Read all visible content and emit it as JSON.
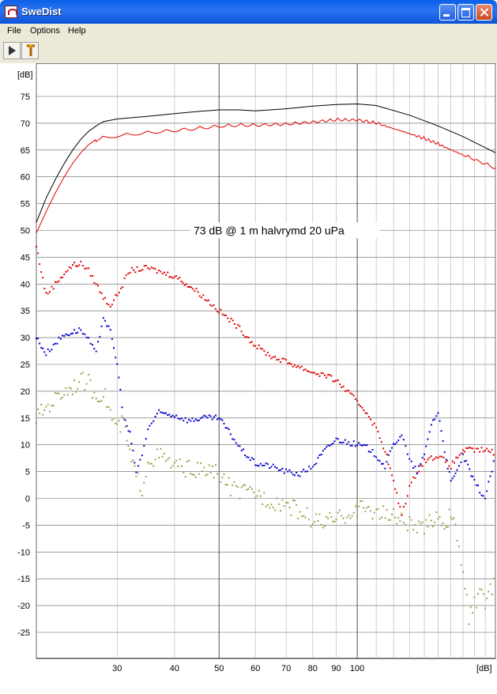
{
  "window": {
    "title": "SweDist",
    "controls": [
      "minimize",
      "maximize",
      "close"
    ]
  },
  "menu": {
    "items": [
      "File",
      "Options",
      "Help"
    ]
  },
  "toolbar": {
    "buttons": [
      {
        "name": "run",
        "icon": "play-icon"
      },
      {
        "name": "tool",
        "icon": "tuning-fork-icon"
      }
    ]
  },
  "colors": {
    "grid_major": "#606060",
    "grid_minor": "#b0b0b0",
    "fundamental": "#000000",
    "fundamental_corrected": "#e00000",
    "harmonic_2": "#e00000",
    "harmonic_3": "#0000d0",
    "harmonic_4": "#a0a050"
  },
  "chart_data": {
    "type": "line",
    "annotation": "73 dB @ 1 m halvrymd 20 uPa",
    "ylabel": "[dB]",
    "xlabel": "[dB]",
    "xscale": "log",
    "xlim": [
      20,
      200
    ],
    "ylim": [
      -30,
      78
    ],
    "x_ticks": [
      30,
      40,
      50,
      60,
      70,
      80,
      90,
      100
    ],
    "y_ticks": [
      75,
      70,
      65,
      60,
      55,
      50,
      45,
      40,
      35,
      30,
      25,
      20,
      15,
      10,
      5,
      0,
      -5,
      -10,
      -15,
      -20,
      -25
    ],
    "grid": true,
    "series": [
      {
        "style": "line",
        "color": "#000000",
        "x": [
          20,
          21,
          22,
          23,
          24,
          25,
          26,
          27,
          28,
          30,
          35,
          40,
          45,
          50,
          55,
          60,
          70,
          80,
          90,
          100,
          110,
          130,
          150,
          170,
          200
        ],
        "y": [
          51.5,
          56,
          59.5,
          62.5,
          65,
          67,
          68.5,
          69.5,
          70.3,
          70.8,
          71.3,
          71.8,
          72.2,
          72.5,
          72.5,
          72.3,
          72.7,
          73.2,
          73.5,
          73.6,
          73.3,
          71.5,
          69.5,
          67.5,
          64.5
        ]
      },
      {
        "style": "ripple",
        "color": "#e00000",
        "x": [
          20,
          21,
          22,
          23,
          24,
          25,
          26,
          27,
          28,
          30,
          35,
          40,
          45,
          50,
          55,
          60,
          70,
          80,
          90,
          100,
          110,
          130,
          150,
          170,
          200
        ],
        "y": [
          49.5,
          53.5,
          57,
          60,
          62.5,
          64.5,
          66,
          67,
          67.6,
          68,
          68.6,
          69,
          69.4,
          69.8,
          70,
          70,
          70.2,
          70.6,
          71,
          71,
          70.4,
          68.5,
          66.5,
          64.5,
          62
        ]
      },
      {
        "style": "dots",
        "color": "#e00000",
        "x": [
          20,
          21,
          22,
          23,
          24,
          25,
          26,
          27,
          28,
          29,
          30,
          32,
          35,
          38,
          40,
          45,
          50,
          55,
          60,
          65,
          70,
          75,
          80,
          85,
          90,
          95,
          100,
          105,
          110,
          115,
          120,
          125,
          130,
          135,
          140,
          150,
          160,
          170,
          180,
          190,
          200
        ],
        "y": [
          47,
          38,
          40,
          42,
          43.5,
          43.8,
          42.5,
          40,
          37.5,
          36,
          38,
          42.5,
          43,
          42,
          41.5,
          38.5,
          35,
          32,
          28.5,
          26.5,
          25.5,
          24.5,
          23.5,
          23,
          22,
          20,
          18,
          16,
          13,
          9,
          3,
          -3,
          2,
          5,
          7,
          8,
          6,
          9,
          9,
          9,
          8.5
        ]
      },
      {
        "style": "dots",
        "color": "#0000d0",
        "x": [
          20,
          21,
          22,
          23,
          24,
          25,
          26,
          27,
          28,
          29,
          30,
          31,
          32,
          33,
          34,
          35,
          37,
          40,
          43,
          46,
          50,
          53,
          56,
          60,
          65,
          70,
          75,
          80,
          85,
          90,
          95,
          100,
          105,
          110,
          115,
          120,
          125,
          130,
          135,
          140,
          145,
          150,
          155,
          160,
          165,
          170,
          180,
          190,
          200
        ],
        "y": [
          30,
          27,
          29,
          30.5,
          31,
          31.5,
          29.5,
          27,
          34,
          31,
          25,
          15,
          12,
          5,
          8,
          13,
          16,
          15.5,
          14.5,
          15,
          15,
          12,
          9,
          6.5,
          6,
          5,
          4.5,
          6,
          9,
          11,
          10.5,
          10,
          9.5,
          8,
          6,
          10,
          12,
          7,
          5,
          8,
          14,
          16,
          9,
          3,
          5,
          8,
          3,
          0,
          8
        ]
      },
      {
        "style": "dots",
        "color": "#a0a050",
        "x": [
          20,
          21,
          22,
          23,
          24,
          25,
          26,
          27,
          28,
          29,
          30,
          31,
          32,
          33,
          34,
          35,
          37,
          40,
          43,
          46,
          50,
          53,
          56,
          60,
          65,
          70,
          75,
          80,
          85,
          90,
          95,
          100,
          105,
          110,
          115,
          120,
          125,
          130,
          135,
          140,
          145,
          150,
          155,
          160,
          165,
          170,
          175,
          180,
          185,
          190,
          200
        ],
        "y": [
          15,
          17,
          18.5,
          20,
          21,
          22,
          21.5,
          19,
          20,
          16,
          13,
          14,
          8,
          4,
          2,
          7,
          8,
          6,
          5.5,
          5,
          5,
          2,
          1,
          1,
          -0.5,
          -1,
          -2.5,
          -4,
          -4.5,
          -4,
          -3,
          -1.5,
          -2,
          -2.5,
          -3,
          -3.5,
          -4,
          -5,
          -5.5,
          -6,
          -4,
          -3,
          -5,
          -3,
          -7,
          -14,
          -22,
          -20,
          -18,
          -19,
          -16
        ]
      }
    ]
  }
}
